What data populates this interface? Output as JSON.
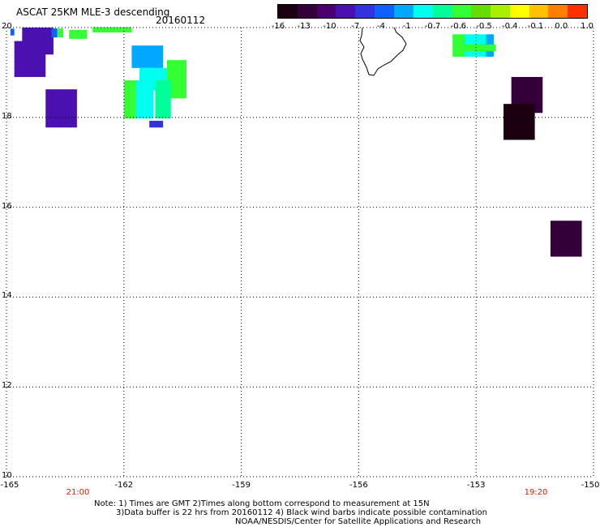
{
  "header": {
    "title": "ASCAT 25KM MLE-3 descending",
    "date": "20160112"
  },
  "colorbar": {
    "labels": [
      "-16",
      "-13",
      "-10",
      "-7",
      "-4",
      "-1",
      "-0.7",
      "-0.6",
      "-0.5",
      "-0.4",
      "-0.1",
      "0.0",
      "1.0"
    ],
    "colors": [
      "#1a0010",
      "#33003a",
      "#4b0070",
      "#4a10b0",
      "#3333dd",
      "#1060ff",
      "#00a8ff",
      "#00ffee",
      "#00ff99",
      "#33ff33",
      "#66dd00",
      "#aaee00",
      "#ffff00",
      "#ffc000",
      "#ff7f00",
      "#ff3000"
    ]
  },
  "map": {
    "lat_labels": [
      "20",
      "18",
      "16",
      "14",
      "12",
      "10"
    ],
    "lon_labels": [
      "-165",
      "-162",
      "-159",
      "-156",
      "-153",
      "-150"
    ],
    "time_labels": [
      "21:00",
      "19:20"
    ],
    "lat_range": [
      10,
      20
    ],
    "lon_range": [
      -165,
      -150
    ],
    "cells": [
      {
        "lon": -164.6,
        "lat": 19.7,
        "w": 0.8,
        "h": 0.6,
        "color": "#4a10b0"
      },
      {
        "lon": -164.8,
        "lat": 19.3,
        "w": 0.8,
        "h": 0.8,
        "color": "#4a10b0"
      },
      {
        "lon": -163.85,
        "lat": 19.88,
        "w": 0.15,
        "h": 0.2,
        "color": "#1060ff"
      },
      {
        "lon": -163.7,
        "lat": 19.88,
        "w": 0.15,
        "h": 0.2,
        "color": "#33ff33"
      },
      {
        "lon": -163.4,
        "lat": 19.85,
        "w": 0.45,
        "h": 0.2,
        "color": "#33ff33"
      },
      {
        "lon": -162.8,
        "lat": 19.95,
        "w": 1.0,
        "h": 0.12,
        "color": "#33ff33"
      },
      {
        "lon": -164.0,
        "lat": 18.2,
        "w": 0.8,
        "h": 0.85,
        "color": "#4a10b0"
      },
      {
        "lon": -161.8,
        "lat": 19.35,
        "w": 0.8,
        "h": 0.5,
        "color": "#00a8ff"
      },
      {
        "lon": -161.6,
        "lat": 18.85,
        "w": 0.7,
        "h": 0.5,
        "color": "#00ffee"
      },
      {
        "lon": -160.9,
        "lat": 18.85,
        "w": 0.5,
        "h": 0.85,
        "color": "#33ff33"
      },
      {
        "lon": -162.0,
        "lat": 18.4,
        "w": 0.35,
        "h": 0.85,
        "color": "#33ff33"
      },
      {
        "lon": -161.7,
        "lat": 18.4,
        "w": 0.45,
        "h": 0.85,
        "color": "#00ffee"
      },
      {
        "lon": -161.2,
        "lat": 18.4,
        "w": 0.4,
        "h": 0.85,
        "color": "#00ff99"
      },
      {
        "lon": -161.35,
        "lat": 17.85,
        "w": 0.35,
        "h": 0.15,
        "color": "#3333dd"
      },
      {
        "lon": -164.9,
        "lat": 19.9,
        "w": 0.1,
        "h": 0.15,
        "color": "#1060ff"
      },
      {
        "lon": -153.6,
        "lat": 19.6,
        "w": 0.35,
        "h": 0.5,
        "color": "#33ff33"
      },
      {
        "lon": -153.3,
        "lat": 19.6,
        "w": 0.6,
        "h": 0.5,
        "color": "#00ffee"
      },
      {
        "lon": -152.75,
        "lat": 19.6,
        "w": 0.2,
        "h": 0.5,
        "color": "#00a8ff"
      },
      {
        "lon": -153.3,
        "lat": 19.55,
        "w": 0.8,
        "h": 0.15,
        "color": "#33ff33"
      },
      {
        "lon": -152.1,
        "lat": 18.5,
        "w": 0.8,
        "h": 0.8,
        "color": "#33003a"
      },
      {
        "lon": -152.3,
        "lat": 17.9,
        "w": 0.8,
        "h": 0.8,
        "color": "#1a0010"
      },
      {
        "lon": -151.1,
        "lat": 15.3,
        "w": 0.8,
        "h": 0.8,
        "color": "#33003a"
      }
    ]
  },
  "footer": {
    "note1": "Note: 1) Times are GMT 2)Times along bottom correspond to measurement at 15N",
    "note2": "3)Data buffer is 22 hrs from 20160112 4) Black wind barbs indicate possible contamination",
    "note3": "NOAA/NESDIS/Center for Satellite Applications and Research"
  }
}
